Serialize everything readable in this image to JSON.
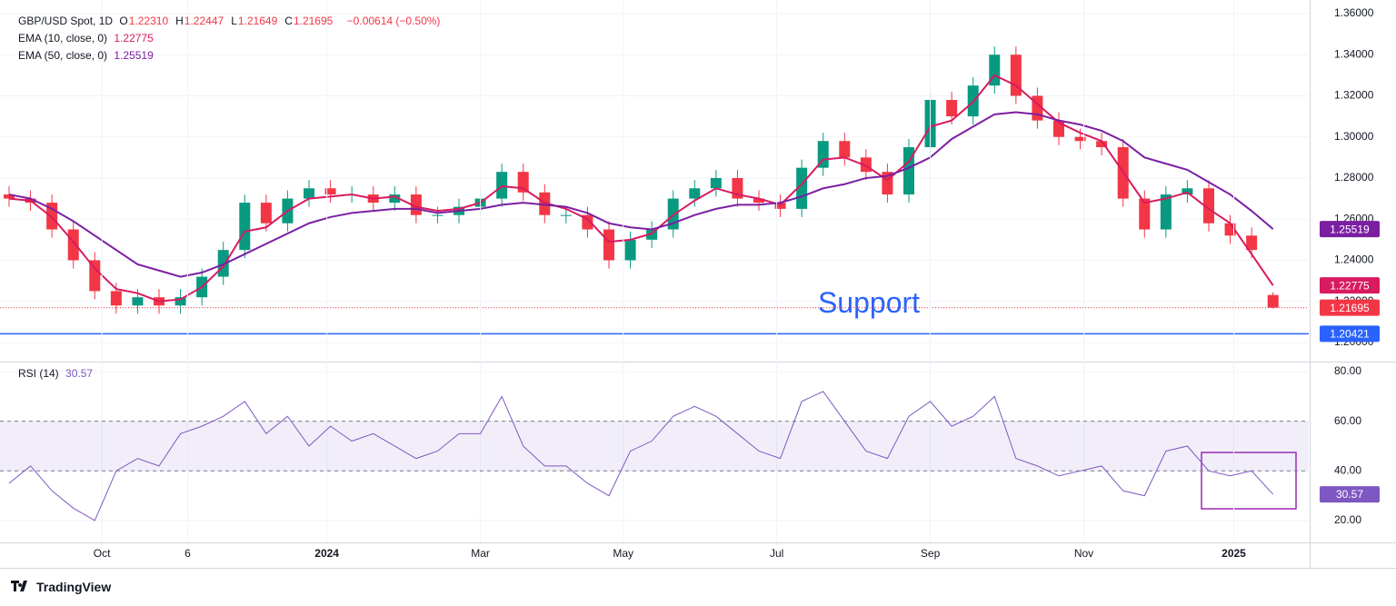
{
  "chart_data": [
    {
      "type": "candlestick",
      "legend": {
        "symbol": "GBP/USD Spot, 1D",
        "fields": [
          {
            "key": "O",
            "text": "1.22310"
          },
          {
            "key": "H",
            "text": "1.22447"
          },
          {
            "key": "L",
            "text": "1.21649"
          },
          {
            "key": "C",
            "text": "1.21695"
          }
        ],
        "change": "−0.00614 (−0.50%)"
      },
      "x": [
        0,
        6,
        12,
        18,
        24,
        30,
        36,
        42,
        48,
        54,
        60,
        66,
        72,
        78,
        84,
        90,
        96,
        102,
        108,
        114,
        120,
        126,
        132,
        138,
        144,
        150,
        156,
        162,
        168,
        174,
        180,
        186,
        192,
        198,
        204,
        210,
        216,
        222,
        228,
        234,
        240,
        246,
        252,
        258,
        264,
        270,
        276,
        282,
        288,
        294,
        300,
        306,
        312,
        318,
        324,
        330,
        336,
        342,
        348,
        354
      ],
      "open": [
        1.272,
        1.27,
        1.268,
        1.255,
        1.24,
        1.225,
        1.218,
        1.222,
        1.218,
        1.222,
        1.232,
        1.245,
        1.268,
        1.258,
        1.27,
        1.275,
        1.272,
        1.272,
        1.268,
        1.272,
        1.262,
        1.262,
        1.266,
        1.27,
        1.283,
        1.273,
        1.262,
        1.262,
        1.255,
        1.24,
        1.25,
        1.255,
        1.27,
        1.275,
        1.28,
        1.27,
        1.268,
        1.265,
        1.285,
        1.298,
        1.29,
        1.283,
        1.272,
        1.295,
        1.318,
        1.31,
        1.325,
        1.34,
        1.32,
        1.308,
        1.3,
        1.298,
        1.295,
        1.27,
        1.255,
        1.272,
        1.275,
        1.258,
        1.252,
        1.2231
      ],
      "high": [
        1.276,
        1.274,
        1.272,
        1.259,
        1.244,
        1.229,
        1.226,
        1.226,
        1.226,
        1.236,
        1.249,
        1.272,
        1.272,
        1.274,
        1.279,
        1.279,
        1.276,
        1.276,
        1.276,
        1.276,
        1.266,
        1.27,
        1.274,
        1.287,
        1.287,
        1.277,
        1.266,
        1.266,
        1.259,
        1.254,
        1.259,
        1.274,
        1.279,
        1.284,
        1.284,
        1.274,
        1.272,
        1.289,
        1.302,
        1.302,
        1.294,
        1.287,
        1.299,
        1.322,
        1.322,
        1.329,
        1.344,
        1.344,
        1.324,
        1.312,
        1.304,
        1.302,
        1.299,
        1.274,
        1.276,
        1.279,
        1.279,
        1.262,
        1.256,
        1.22447
      ],
      "low": [
        1.266,
        1.264,
        1.251,
        1.236,
        1.221,
        1.214,
        1.214,
        1.214,
        1.214,
        1.218,
        1.228,
        1.241,
        1.254,
        1.254,
        1.266,
        1.268,
        1.268,
        1.264,
        1.264,
        1.258,
        1.258,
        1.258,
        1.262,
        1.266,
        1.269,
        1.258,
        1.258,
        1.251,
        1.236,
        1.236,
        1.246,
        1.251,
        1.266,
        1.271,
        1.266,
        1.264,
        1.261,
        1.261,
        1.281,
        1.286,
        1.279,
        1.268,
        1.268,
        1.291,
        1.306,
        1.306,
        1.321,
        1.316,
        1.304,
        1.296,
        1.294,
        1.291,
        1.266,
        1.251,
        1.251,
        1.268,
        1.254,
        1.248,
        1.241,
        1.21649
      ],
      "close": [
        1.27,
        1.268,
        1.255,
        1.24,
        1.225,
        1.218,
        1.222,
        1.218,
        1.222,
        1.232,
        1.245,
        1.268,
        1.258,
        1.27,
        1.275,
        1.272,
        1.272,
        1.268,
        1.272,
        1.262,
        1.262,
        1.266,
        1.27,
        1.283,
        1.273,
        1.262,
        1.262,
        1.255,
        1.24,
        1.25,
        1.255,
        1.27,
        1.275,
        1.28,
        1.27,
        1.268,
        1.265,
        1.285,
        1.298,
        1.29,
        1.283,
        1.272,
        1.295,
        1.318,
        1.31,
        1.325,
        1.34,
        1.32,
        1.308,
        1.3,
        1.298,
        1.295,
        1.27,
        1.255,
        1.272,
        1.275,
        1.258,
        1.252,
        1.245,
        1.21695
      ],
      "up_color": "#089981",
      "down_color": "#f23645",
      "overlays": [
        {
          "name": "EMA (10, close, 0)",
          "color": "#d81b60",
          "last_label": "1.22775",
          "values": [
            1.27,
            1.269,
            1.261,
            1.249,
            1.236,
            1.226,
            1.224,
            1.22,
            1.221,
            1.227,
            1.237,
            1.254,
            1.256,
            1.264,
            1.27,
            1.271,
            1.272,
            1.27,
            1.271,
            1.266,
            1.264,
            1.265,
            1.268,
            1.276,
            1.275,
            1.268,
            1.265,
            1.26,
            1.249,
            1.25,
            1.253,
            1.262,
            1.269,
            1.275,
            1.272,
            1.27,
            1.267,
            1.277,
            1.289,
            1.29,
            1.286,
            1.279,
            1.288,
            1.305,
            1.308,
            1.317,
            1.33,
            1.325,
            1.316,
            1.307,
            1.302,
            1.298,
            1.283,
            1.268,
            1.27,
            1.273,
            1.265,
            1.258,
            1.243,
            1.22775
          ]
        },
        {
          "name": "EMA (50, close, 0)",
          "color": "#7b1fa2",
          "last_label": "1.25519",
          "values": [
            1.272,
            1.27,
            1.265,
            1.259,
            1.252,
            1.245,
            1.238,
            1.235,
            1.232,
            1.234,
            1.238,
            1.243,
            1.248,
            1.253,
            1.258,
            1.261,
            1.263,
            1.264,
            1.265,
            1.265,
            1.263,
            1.264,
            1.265,
            1.267,
            1.268,
            1.267,
            1.266,
            1.263,
            1.258,
            1.256,
            1.255,
            1.258,
            1.262,
            1.265,
            1.267,
            1.267,
            1.268,
            1.271,
            1.275,
            1.277,
            1.28,
            1.281,
            1.285,
            1.29,
            1.299,
            1.305,
            1.311,
            1.312,
            1.311,
            1.308,
            1.306,
            1.303,
            1.298,
            1.29,
            1.287,
            1.284,
            1.278,
            1.272,
            1.264,
            1.25519
          ]
        }
      ],
      "support": {
        "label": "Support",
        "value": 1.20421,
        "price_label": "1.20421",
        "color": "#2962ff"
      },
      "xlim": [
        0,
        364
      ],
      "ylim": [
        1.1907,
        1.3644
      ],
      "yticks": [
        {
          "value": 1.2,
          "label": "1.20000"
        },
        {
          "value": 1.22,
          "label": "1.22000"
        },
        {
          "value": 1.24,
          "label": "1.24000"
        },
        {
          "value": 1.26,
          "label": "1.26000"
        },
        {
          "value": 1.28,
          "label": "1.28000"
        },
        {
          "value": 1.3,
          "label": "1.30000"
        },
        {
          "value": 1.32,
          "label": "1.32000"
        },
        {
          "value": 1.34,
          "label": "1.34000"
        },
        {
          "value": 1.36,
          "label": "1.36000"
        }
      ],
      "grid": true
    },
    {
      "type": "line",
      "x": [
        0,
        6,
        12,
        18,
        24,
        30,
        36,
        42,
        48,
        54,
        60,
        66,
        72,
        78,
        84,
        90,
        96,
        102,
        108,
        114,
        120,
        126,
        132,
        138,
        144,
        150,
        156,
        162,
        168,
        174,
        180,
        186,
        192,
        198,
        204,
        210,
        216,
        222,
        228,
        234,
        240,
        246,
        252,
        258,
        264,
        270,
        276,
        282,
        288,
        294,
        300,
        306,
        312,
        318,
        324,
        330,
        336,
        342,
        348,
        354
      ],
      "series": [
        {
          "name": "RSI (14)",
          "color": "#7e57c2",
          "values": [
            35,
            42,
            32,
            25,
            20,
            40,
            45,
            42,
            55,
            58,
            62,
            68,
            55,
            62,
            50,
            58,
            52,
            55,
            50,
            45,
            48,
            55,
            55,
            70,
            50,
            42,
            42,
            35,
            30,
            48,
            52,
            62,
            66,
            62,
            55,
            48,
            45,
            68,
            72,
            60,
            48,
            45,
            62,
            68,
            58,
            62,
            70,
            45,
            42,
            38,
            40,
            42,
            32,
            30,
            48,
            50,
            40,
            38,
            40,
            30.57
          ]
        }
      ],
      "band": [
        40,
        60
      ],
      "band_color": "#7e57c2",
      "xlim": [
        0,
        364
      ],
      "xticks": [
        {
          "value": 26,
          "label": "Oct"
        },
        {
          "value": 50,
          "label": "6"
        },
        {
          "value": 89,
          "label": "2024"
        },
        {
          "value": 132,
          "label": "Mar"
        },
        {
          "value": 172,
          "label": "May"
        },
        {
          "value": 215,
          "label": "Jul"
        },
        {
          "value": 258,
          "label": "Sep"
        },
        {
          "value": 301,
          "label": "Nov"
        },
        {
          "value": 343,
          "label": "2025"
        }
      ],
      "ylim": [
        11.2,
        83.3
      ],
      "yticks": [
        {
          "value": 20,
          "label": "20.00"
        },
        {
          "value": 40,
          "label": "40.00"
        },
        {
          "value": 60,
          "label": "60.00"
        },
        {
          "value": 80,
          "label": "80.00"
        }
      ],
      "grid": true
    }
  ],
  "branding": "TradingView"
}
